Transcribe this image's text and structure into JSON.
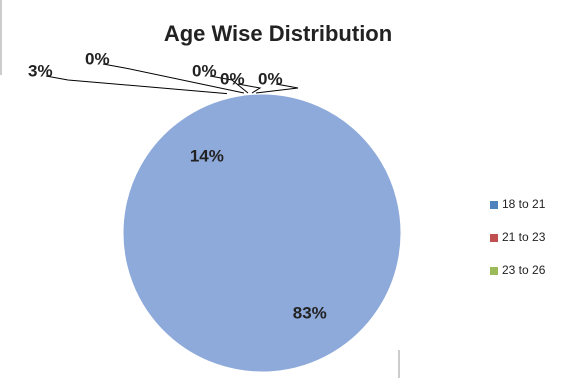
{
  "chart_data": {
    "type": "pie",
    "title": "Age Wise Distribution",
    "categories": [
      "18 to 21",
      "21 to 23",
      "23 to 26",
      null,
      null,
      null,
      null
    ],
    "values": [
      83,
      14,
      3,
      0,
      0,
      0,
      0
    ],
    "value_labels": [
      "83%",
      "14%",
      "3%",
      "0%",
      "0%",
      "0%",
      "0%"
    ],
    "slice_color": "#8eaadb",
    "legend_colors": [
      "#4f81bd",
      "#c0504d",
      "#9bbb59"
    ],
    "legend": "right"
  }
}
